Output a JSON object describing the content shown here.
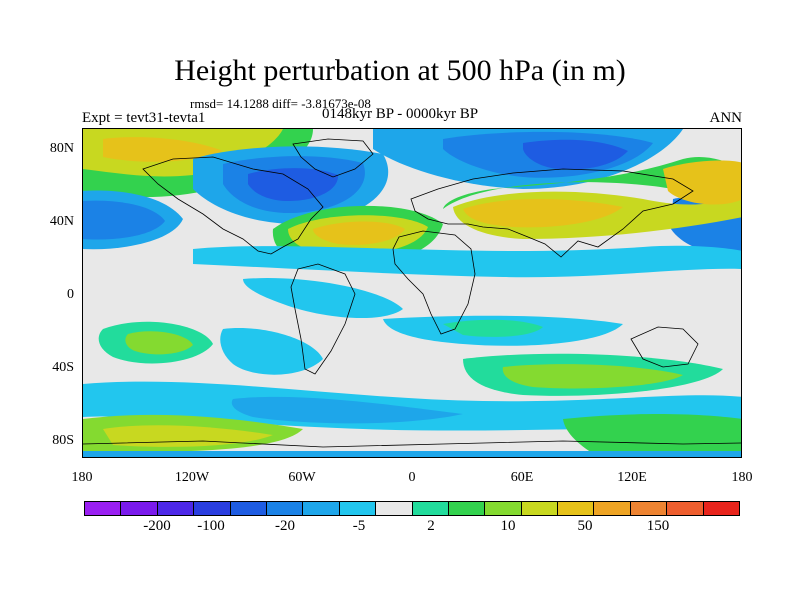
{
  "title": "Height perturbation at 500 hPa (in m)",
  "stats": "rmsd= 14.1288 diff= -3.81673e-08",
  "experiment": "Expt = tevt31-tevta1",
  "period": "0148kyr BP - 0000kyr BP",
  "season": "ANN",
  "map": {
    "y_ticks": [
      "80N",
      "40N",
      "0",
      "40S",
      "80S"
    ],
    "x_ticks": [
      "180",
      "120W",
      "60W",
      "0",
      "60E",
      "120E",
      "180"
    ]
  },
  "colorbar": {
    "colors": [
      "#9a1ff2",
      "#7a1aec",
      "#4d28e8",
      "#2a3ee0",
      "#1e5ce2",
      "#1b82e6",
      "#1ea6ea",
      "#22c6ee",
      "#e8e8e8",
      "#22dc9c",
      "#33d24e",
      "#84da30",
      "#c8d820",
      "#e6c21a",
      "#eea424",
      "#ee8432",
      "#ee5e2e",
      "#e8241c"
    ],
    "labels": [
      "-200",
      "-100",
      "-20",
      "-5",
      "2",
      "10",
      "50",
      "150"
    ]
  }
}
